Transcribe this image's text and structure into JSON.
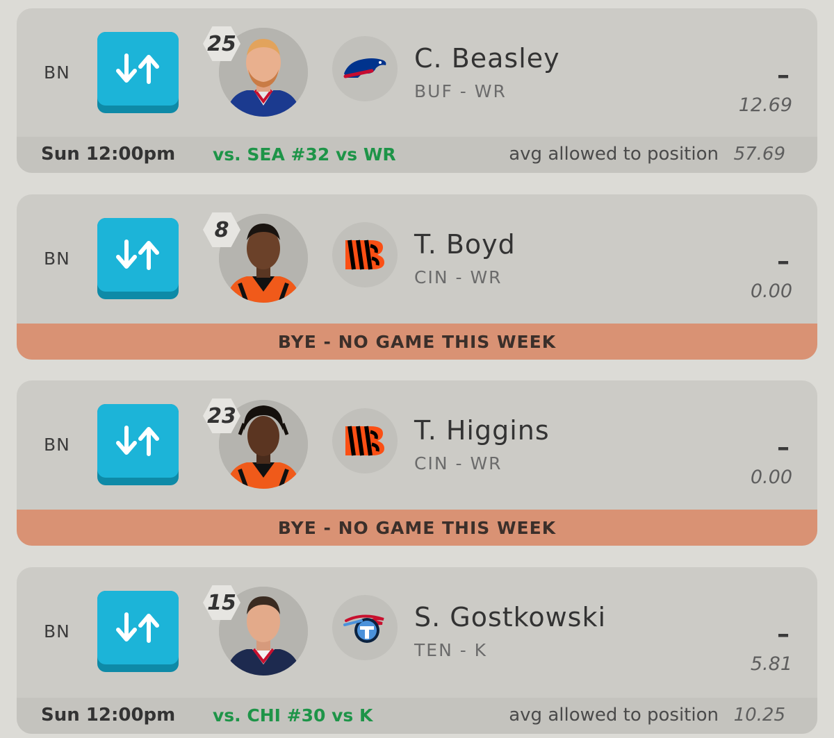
{
  "players": [
    {
      "slot": "BN",
      "rank": "25",
      "name": "C. Beasley",
      "pos": "BUF - WR",
      "proj_main": "–",
      "proj_score": "12.69",
      "team_logo": "buffalo-bills-logo",
      "game_time": "Sun 12:00pm",
      "opponent": "vs. SEA #32 vs WR",
      "avg_label": "avg allowed to position",
      "avg_value": "57.69"
    },
    {
      "slot": "BN",
      "rank": "8",
      "name": "T. Boyd",
      "pos": "CIN - WR",
      "proj_main": "–",
      "proj_score": "0.00",
      "team_logo": "cincinnati-bengals-logo",
      "bye_text": "BYE - NO GAME THIS WEEK"
    },
    {
      "slot": "BN",
      "rank": "23",
      "name": "T. Higgins",
      "pos": "CIN - WR",
      "proj_main": "–",
      "proj_score": "0.00",
      "team_logo": "cincinnati-bengals-logo",
      "bye_text": "BYE - NO GAME THIS WEEK"
    },
    {
      "slot": "BN",
      "rank": "15",
      "name": "S. Gostkowski",
      "pos": "TEN - K",
      "proj_main": "–",
      "proj_score": "5.81",
      "team_logo": "tennessee-titans-logo",
      "game_time": "Sun 12:00pm",
      "opponent": "vs. CHI #30 vs K",
      "avg_label": "avg allowed to position",
      "avg_value": "10.25"
    }
  ],
  "colors": {
    "swap_button": "#1cb4d8",
    "opponent_text": "#1e9448",
    "bye_bar": "#d99274"
  }
}
